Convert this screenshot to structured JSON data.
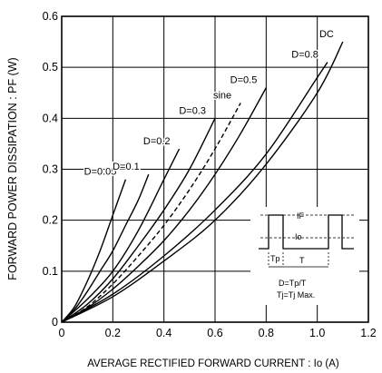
{
  "chart_data": {
    "type": "line",
    "xlabel": "AVERAGE  RECTIFIED  FORWARD  CURRENT : Io (A)",
    "ylabel": "FORWARD  POWER  DISSIPATION : PF (W)",
    "xlim": [
      0,
      1.2
    ],
    "ylim": [
      0,
      0.6
    ],
    "xticks": [
      "0",
      "0.2",
      "0.4",
      "0.6",
      "0.8",
      "1.0",
      "1.2"
    ],
    "yticks": [
      "0",
      "0.1",
      "0.2",
      "0.3",
      "0.4",
      "0.5",
      "0.6"
    ],
    "grid": true,
    "series": [
      {
        "name": "D=0.05",
        "style": "solid",
        "x": [
          0,
          0.05,
          0.1,
          0.15,
          0.2,
          0.25
        ],
        "y": [
          0,
          0.03,
          0.08,
          0.14,
          0.21,
          0.28
        ]
      },
      {
        "name": "D=0.1",
        "style": "solid",
        "x": [
          0,
          0.05,
          0.1,
          0.15,
          0.2,
          0.25,
          0.3,
          0.34
        ],
        "y": [
          0,
          0.025,
          0.06,
          0.1,
          0.14,
          0.19,
          0.24,
          0.29
        ]
      },
      {
        "name": "D=0.2",
        "style": "solid",
        "x": [
          0,
          0.1,
          0.2,
          0.3,
          0.4,
          0.46
        ],
        "y": [
          0,
          0.045,
          0.1,
          0.18,
          0.28,
          0.34
        ]
      },
      {
        "name": "D=0.3",
        "style": "solid",
        "x": [
          0,
          0.1,
          0.2,
          0.3,
          0.4,
          0.5,
          0.6
        ],
        "y": [
          0,
          0.035,
          0.085,
          0.15,
          0.22,
          0.3,
          0.4
        ]
      },
      {
        "name": "sine",
        "style": "dashed",
        "x": [
          0,
          0.1,
          0.2,
          0.3,
          0.4,
          0.5,
          0.6,
          0.7
        ],
        "y": [
          0,
          0.03,
          0.075,
          0.13,
          0.19,
          0.26,
          0.34,
          0.43
        ]
      },
      {
        "name": "D=0.5",
        "style": "solid",
        "x": [
          0,
          0.1,
          0.2,
          0.3,
          0.4,
          0.5,
          0.6,
          0.7,
          0.8
        ],
        "y": [
          0,
          0.028,
          0.065,
          0.11,
          0.16,
          0.22,
          0.29,
          0.37,
          0.46
        ]
      },
      {
        "name": "D=0.8",
        "style": "solid",
        "x": [
          0,
          0.2,
          0.4,
          0.6,
          0.8,
          1.0,
          1.04
        ],
        "y": [
          0,
          0.055,
          0.13,
          0.22,
          0.33,
          0.48,
          0.51
        ]
      },
      {
        "name": "DC",
        "style": "solid",
        "x": [
          0,
          0.2,
          0.4,
          0.6,
          0.8,
          1.0,
          1.1
        ],
        "y": [
          0,
          0.05,
          0.12,
          0.2,
          0.31,
          0.45,
          0.55
        ]
      }
    ],
    "inset": {
      "labels": [
        "IF",
        "Io",
        "Tp",
        "T",
        "D=Tp/T",
        "Tj=Tj Max."
      ]
    }
  }
}
